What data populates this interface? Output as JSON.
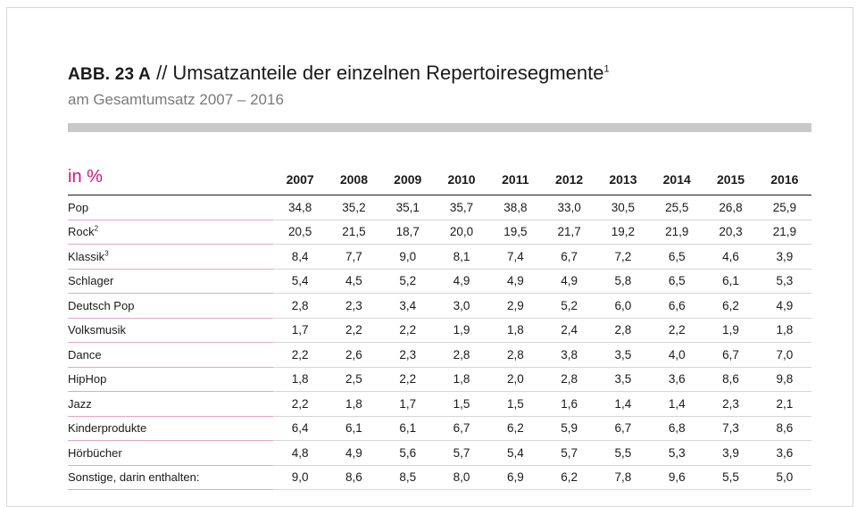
{
  "header": {
    "title_prefix": "ABB. 23 A",
    "title_text": "// Umsatzanteile der einzelnen Repertoiresegmente",
    "title_footnote": "1",
    "subtitle": "am Gesamtumsatz 2007 – 2016"
  },
  "colors": {
    "accent": "#d4137f",
    "bar": "#c8c8c8",
    "row_rule": "#e3a6c8"
  },
  "table": {
    "unit_label": "in %",
    "years": [
      "2007",
      "2008",
      "2009",
      "2010",
      "2011",
      "2012",
      "2013",
      "2014",
      "2015",
      "2016"
    ],
    "rows": [
      {
        "label": "Pop",
        "sup": "",
        "values": [
          "34,8",
          "35,2",
          "35,1",
          "35,7",
          "38,8",
          "33,0",
          "30,5",
          "25,5",
          "26,8",
          "25,9"
        ]
      },
      {
        "label": "Rock",
        "sup": "2",
        "values": [
          "20,5",
          "21,5",
          "18,7",
          "20,0",
          "19,5",
          "21,7",
          "19,2",
          "21,9",
          "20,3",
          "21,9"
        ]
      },
      {
        "label": "Klassik",
        "sup": "3",
        "values": [
          "8,4",
          "7,7",
          "9,0",
          "8,1",
          "7,4",
          "6,7",
          "7,2",
          "6,5",
          "4,6",
          "3,9"
        ]
      },
      {
        "label": "Schlager",
        "sup": "",
        "values": [
          "5,4",
          "4,5",
          "5,2",
          "4,9",
          "4,9",
          "4,9",
          "5,8",
          "6,5",
          "6,1",
          "5,3"
        ]
      },
      {
        "label": "Deutsch Pop",
        "sup": "",
        "values": [
          "2,8",
          "2,3",
          "3,4",
          "3,0",
          "2,9",
          "5,2",
          "6,0",
          "6,6",
          "6,2",
          "4,9"
        ]
      },
      {
        "label": "Volksmusik",
        "sup": "",
        "values": [
          "1,7",
          "2,2",
          "2,2",
          "1,9",
          "1,8",
          "2,4",
          "2,8",
          "2,2",
          "1,9",
          "1,8"
        ]
      },
      {
        "label": "Dance",
        "sup": "",
        "values": [
          "2,2",
          "2,6",
          "2,3",
          "2,8",
          "2,8",
          "3,8",
          "3,5",
          "4,0",
          "6,7",
          "7,0"
        ]
      },
      {
        "label": "HipHop",
        "sup": "",
        "values": [
          "1,8",
          "2,5",
          "2,2",
          "1,8",
          "2,0",
          "2,8",
          "3,5",
          "3,6",
          "8,6",
          "9,8"
        ]
      },
      {
        "label": "Jazz",
        "sup": "",
        "values": [
          "2,2",
          "1,8",
          "1,7",
          "1,5",
          "1,5",
          "1,6",
          "1,4",
          "1,4",
          "2,3",
          "2,1"
        ]
      },
      {
        "label": "Kinderprodukte",
        "sup": "",
        "values": [
          "6,4",
          "6,1",
          "6,1",
          "6,7",
          "6,2",
          "5,9",
          "6,7",
          "6,8",
          "7,3",
          "8,6"
        ]
      },
      {
        "label": "Hörbücher",
        "sup": "",
        "values": [
          "4,8",
          "4,9",
          "5,6",
          "5,7",
          "5,4",
          "5,7",
          "5,5",
          "5,3",
          "3,9",
          "3,6"
        ]
      },
      {
        "label": "Sonstige, darin enthalten:",
        "sup": "",
        "values": [
          "9,0",
          "8,6",
          "8,5",
          "8,0",
          "6,9",
          "6,2",
          "7,8",
          "9,6",
          "5,5",
          "5,0"
        ]
      }
    ]
  }
}
